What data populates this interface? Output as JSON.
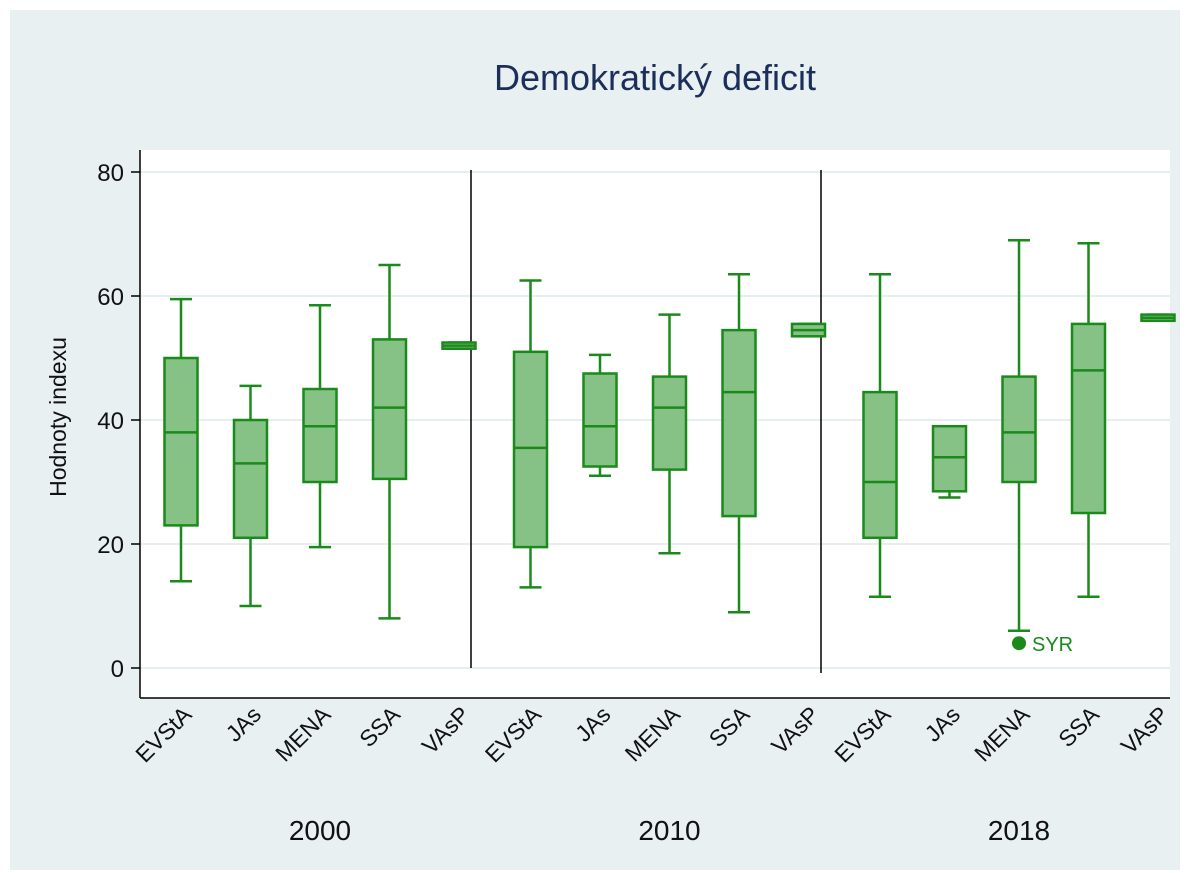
{
  "chart_data": {
    "type": "box",
    "title": "Demokratický deficit",
    "xlabel": "",
    "ylabel": "Hodnoty indexu",
    "ylim": [
      0,
      85
    ],
    "yticks": [
      0,
      20,
      40,
      60,
      80
    ],
    "grid": true,
    "box_color": "#1a8a1a",
    "box_fill": "#86c186",
    "title_color": "#1c2e5a",
    "panels": [
      {
        "label": "2000",
        "groups": [
          {
            "name": "EVStA",
            "whisker_low": 14,
            "q1": 23,
            "median": 38,
            "q3": 50,
            "whisker_high": 59.5
          },
          {
            "name": "JAs",
            "whisker_low": 10,
            "q1": 21,
            "median": 33,
            "q3": 40,
            "whisker_high": 45.5
          },
          {
            "name": "MENA",
            "whisker_low": 19.5,
            "q1": 30,
            "median": 39,
            "q3": 45,
            "whisker_high": 58.5
          },
          {
            "name": "SSA",
            "whisker_low": 8,
            "q1": 30.5,
            "median": 42,
            "q3": 53,
            "whisker_high": 65
          },
          {
            "name": "VAsP",
            "whisker_low": 51.5,
            "q1": 51.5,
            "median": 52,
            "q3": 52.5,
            "whisker_high": 52.5
          }
        ]
      },
      {
        "label": "2010",
        "groups": [
          {
            "name": "EVStA",
            "whisker_low": 13,
            "q1": 19.5,
            "median": 35.5,
            "q3": 51,
            "whisker_high": 62.5
          },
          {
            "name": "JAs",
            "whisker_low": 31,
            "q1": 32.5,
            "median": 39,
            "q3": 47.5,
            "whisker_high": 50.5
          },
          {
            "name": "MENA",
            "whisker_low": 18.5,
            "q1": 32,
            "median": 42,
            "q3": 47,
            "whisker_high": 57
          },
          {
            "name": "SSA",
            "whisker_low": 9,
            "q1": 24.5,
            "median": 44.5,
            "q3": 54.5,
            "whisker_high": 63.5
          },
          {
            "name": "VAsP",
            "whisker_low": 53.5,
            "q1": 53.5,
            "median": 54.5,
            "q3": 55.5,
            "whisker_high": 55.5
          }
        ]
      },
      {
        "label": "2018",
        "groups": [
          {
            "name": "EVStA",
            "whisker_low": 11.5,
            "q1": 21,
            "median": 30,
            "q3": 44.5,
            "whisker_high": 63.5
          },
          {
            "name": "JAs",
            "whisker_low": 27.5,
            "q1": 28.5,
            "median": 34,
            "q3": 39,
            "whisker_high": 39
          },
          {
            "name": "MENA",
            "whisker_low": 6,
            "q1": 30,
            "median": 38,
            "q3": 47,
            "whisker_high": 69
          },
          {
            "name": "SSA",
            "whisker_low": 11.5,
            "q1": 25,
            "median": 48,
            "q3": 55.5,
            "whisker_high": 68.5
          },
          {
            "name": "VAsP",
            "whisker_low": 56,
            "q1": 56,
            "median": 56.5,
            "q3": 57,
            "whisker_high": 57
          }
        ],
        "outliers": [
          {
            "group": "MENA",
            "value": 4,
            "label": "SYR"
          }
        ]
      }
    ]
  }
}
